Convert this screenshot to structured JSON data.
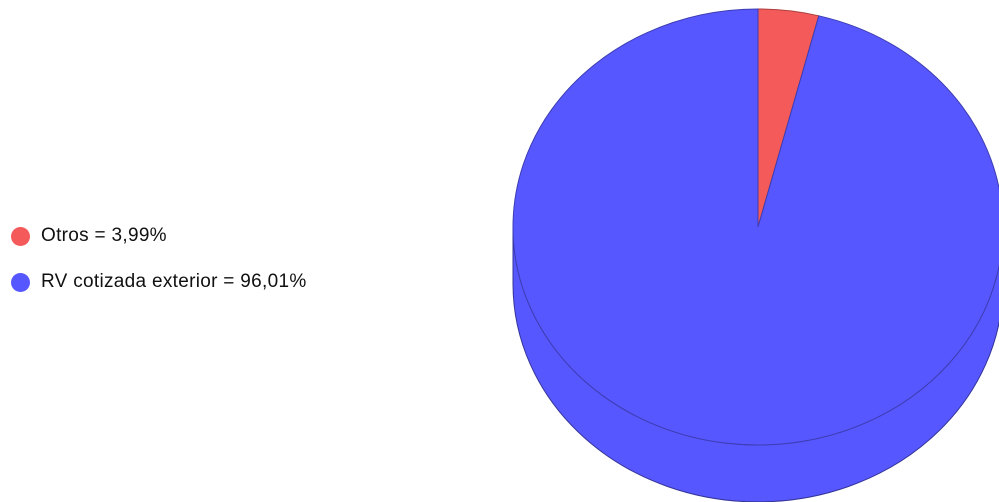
{
  "chart_data": {
    "type": "pie",
    "style": "3d",
    "title": "",
    "legend_position": "left",
    "slices": [
      {
        "label": "Otros",
        "value": 3.99,
        "legend_text": "Otros = 3,99%",
        "color": "#f55a5a"
      },
      {
        "label": "RV cotizada exterior",
        "value": 96.01,
        "legend_text": "RV cotizada exterior = 96,01%",
        "color": "#5757ff"
      }
    ]
  }
}
